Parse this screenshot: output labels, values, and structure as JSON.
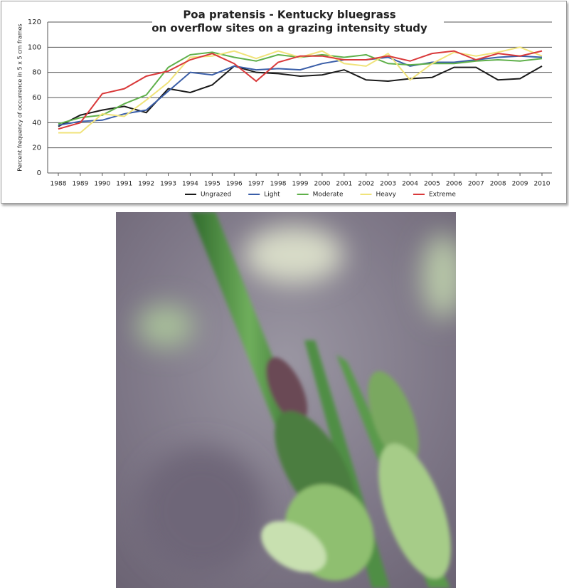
{
  "chart_data": {
    "type": "line",
    "title": "Poa pratensis  -  Kentucky bluegrass",
    "subtitle": "on overflow sites on a grazing intensity study",
    "y_label": "Percent frequency of occurrence in 5 x 5 cm frames",
    "categories": [
      "1988",
      "1989",
      "1990",
      "1991",
      "1992",
      "1993",
      "1994",
      "1995",
      "1996",
      "1997",
      "1998",
      "1999",
      "2000",
      "2001",
      "2002",
      "2003",
      "2004",
      "2005",
      "2006",
      "2007",
      "2008",
      "2009",
      "2010"
    ],
    "series": [
      {
        "name": "Ungrazed",
        "color": "#1a1a1a",
        "values": [
          37,
          46,
          50,
          53,
          48,
          67,
          64,
          70,
          85,
          80,
          79,
          77,
          78,
          82,
          74,
          73,
          75,
          76,
          84,
          84,
          74,
          75,
          85
        ]
      },
      {
        "name": "Light",
        "color": "#3a5ea8",
        "values": [
          38,
          41,
          42,
          47,
          50,
          65,
          80,
          78,
          85,
          82,
          83,
          82,
          87,
          90,
          90,
          92,
          85,
          88,
          88,
          90,
          92,
          93,
          92
        ]
      },
      {
        "name": "Moderate",
        "color": "#5fb04a",
        "values": [
          39,
          44,
          46,
          55,
          62,
          84,
          94,
          96,
          92,
          89,
          94,
          92,
          94,
          92,
          94,
          87,
          86,
          87,
          87,
          89,
          90,
          89,
          91
        ]
      },
      {
        "name": "Heavy",
        "color": "#f0e37a",
        "values": [
          32,
          32,
          47,
          45,
          58,
          72,
          92,
          93,
          97,
          91,
          97,
          92,
          97,
          87,
          85,
          95,
          74,
          87,
          96,
          93,
          96,
          100,
          93
        ]
      },
      {
        "name": "Extreme",
        "color": "#d9393a",
        "values": [
          35,
          40,
          63,
          67,
          77,
          81,
          90,
          95,
          87,
          73,
          88,
          93,
          93,
          90,
          90,
          93,
          89,
          95,
          97,
          90,
          95,
          93,
          97
        ]
      }
    ],
    "ylim": [
      0,
      120
    ],
    "yticks": [
      0,
      20,
      40,
      60,
      80,
      100,
      120
    ],
    "grid": true
  }
}
